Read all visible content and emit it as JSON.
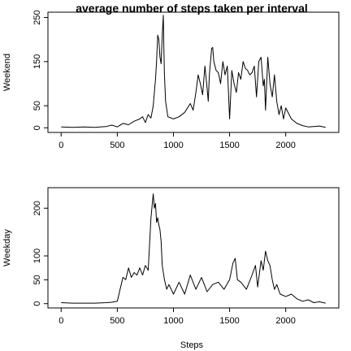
{
  "chart_data": {
    "title": "average number of steps taken per interval",
    "type": "line",
    "xlabel": "Steps",
    "panels": [
      {
        "ylabel": "Weekend",
        "xlim": [
          -117.75,
          2472.75
        ],
        "ylim": [
          -10.5,
          262
        ],
        "xticks": [
          0,
          500,
          1000,
          1500,
          2000
        ],
        "yticks": [
          0,
          50,
          150,
          250
        ],
        "x": [
          0,
          100,
          200,
          300,
          400,
          450,
          500,
          550,
          600,
          650,
          700,
          725,
          750,
          775,
          800,
          820,
          840,
          850,
          860,
          870,
          880,
          890,
          900,
          910,
          915,
          920,
          930,
          950,
          1000,
          1050,
          1100,
          1150,
          1175,
          1200,
          1220,
          1240,
          1260,
          1280,
          1300,
          1310,
          1320,
          1340,
          1350,
          1360,
          1380,
          1400,
          1420,
          1440,
          1460,
          1480,
          1500,
          1520,
          1540,
          1560,
          1580,
          1600,
          1620,
          1640,
          1660,
          1680,
          1700,
          1720,
          1740,
          1760,
          1780,
          1800,
          1810,
          1820,
          1840,
          1860,
          1880,
          1900,
          1920,
          1940,
          1960,
          1980,
          2000,
          2050,
          2100,
          2150,
          2200,
          2250,
          2300,
          2355
        ],
        "y": [
          2,
          1,
          2,
          1,
          3,
          6,
          2,
          10,
          7,
          15,
          20,
          25,
          12,
          30,
          22,
          50,
          110,
          150,
          210,
          200,
          160,
          145,
          210,
          255,
          180,
          120,
          60,
          25,
          20,
          25,
          35,
          55,
          40,
          80,
          120,
          100,
          75,
          140,
          90,
          60,
          120,
          180,
          182,
          150,
          130,
          125,
          100,
          150,
          120,
          140,
          20,
          130,
          100,
          80,
          125,
          110,
          150,
          135,
          130,
          120,
          125,
          140,
          70,
          150,
          160,
          95,
          110,
          40,
          160,
          100,
          70,
          120,
          60,
          30,
          50,
          20,
          45,
          20,
          10,
          5,
          2,
          3,
          4,
          1
        ]
      },
      {
        "ylabel": "Weekday",
        "xlim": [
          -117.75,
          2472.75
        ],
        "ylim": [
          -9,
          243
        ],
        "xticks": [
          0,
          500,
          1000,
          1500,
          2000
        ],
        "yticks": [
          0,
          50,
          100,
          200
        ],
        "x": [
          0,
          100,
          200,
          300,
          400,
          450,
          500,
          525,
          550,
          575,
          600,
          625,
          650,
          675,
          700,
          725,
          750,
          775,
          800,
          820,
          830,
          840,
          850,
          860,
          870,
          880,
          890,
          900,
          920,
          940,
          960,
          1000,
          1050,
          1100,
          1150,
          1200,
          1250,
          1300,
          1350,
          1400,
          1450,
          1500,
          1530,
          1550,
          1570,
          1600,
          1650,
          1700,
          1730,
          1750,
          1780,
          1800,
          1820,
          1840,
          1860,
          1880,
          1900,
          1920,
          1950,
          2000,
          2050,
          2100,
          2150,
          2200,
          2250,
          2300,
          2355
        ],
        "y": [
          2,
          1,
          1,
          1,
          2,
          3,
          5,
          30,
          55,
          50,
          75,
          55,
          65,
          60,
          75,
          60,
          80,
          70,
          180,
          230,
          200,
          210,
          170,
          180,
          165,
          155,
          130,
          80,
          50,
          30,
          40,
          20,
          45,
          20,
          60,
          30,
          55,
          25,
          40,
          45,
          30,
          50,
          85,
          95,
          50,
          45,
          30,
          60,
          80,
          35,
          90,
          70,
          110,
          90,
          80,
          50,
          30,
          40,
          20,
          15,
          20,
          10,
          5,
          8,
          2,
          4,
          1
        ]
      }
    ]
  }
}
